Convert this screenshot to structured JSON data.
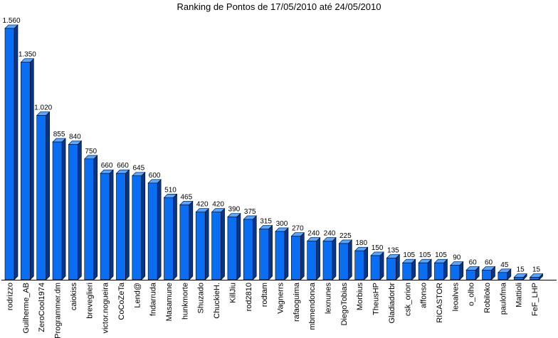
{
  "chart_data": {
    "type": "bar",
    "title": "Ranking de Pontos de 17/05/2010 até 24/05/2010",
    "xlabel": "",
    "ylabel": "",
    "ylim": [
      0,
      1560
    ],
    "grid": false,
    "legend": "none",
    "colors": {
      "bar_front": "#0a6ef2",
      "bar_side": "#06368a",
      "bar_top": "#5aa6ff",
      "axis": "#000000"
    },
    "categories": [
      "rodrizzo",
      "Guilherme_AB",
      "ZeroCool1974",
      "Programmer.dm",
      "caiokiss",
      "breveglieri",
      "victor.nogueira",
      "CoCoZeTa",
      "Lend@",
      "fndarruda",
      "Masamune",
      "hunkmorte",
      "Shuzado",
      "ChuckieH.",
      "KillJiu",
      "rod2810",
      "rodtam",
      "Vagnerrs",
      "rafaoguima",
      "mbmendonca",
      "lexnunes",
      "DiegoTobias",
      "Morbius",
      "TheusHP",
      "Gladiadorbr",
      "csk_orion",
      "affonso",
      "RICASTOR",
      "leoalves",
      "o_olho",
      "Robiloko",
      "paulofma",
      "Mattioli",
      "FeF_LHP"
    ],
    "values": [
      1560,
      1350,
      1020,
      855,
      840,
      750,
      660,
      660,
      645,
      600,
      510,
      465,
      420,
      420,
      390,
      375,
      315,
      300,
      270,
      240,
      240,
      225,
      180,
      150,
      135,
      105,
      105,
      105,
      90,
      60,
      60,
      45,
      15,
      15
    ],
    "value_labels": [
      "1.560",
      "1.350",
      "1.020",
      "855",
      "840",
      "750",
      "660",
      "660",
      "645",
      "600",
      "510",
      "465",
      "420",
      "420",
      "390",
      "375",
      "315",
      "300",
      "270",
      "240",
      "240",
      "225",
      "180",
      "150",
      "135",
      "105",
      "105",
      "105",
      "90",
      "60",
      "60",
      "45",
      "15",
      "15"
    ]
  }
}
